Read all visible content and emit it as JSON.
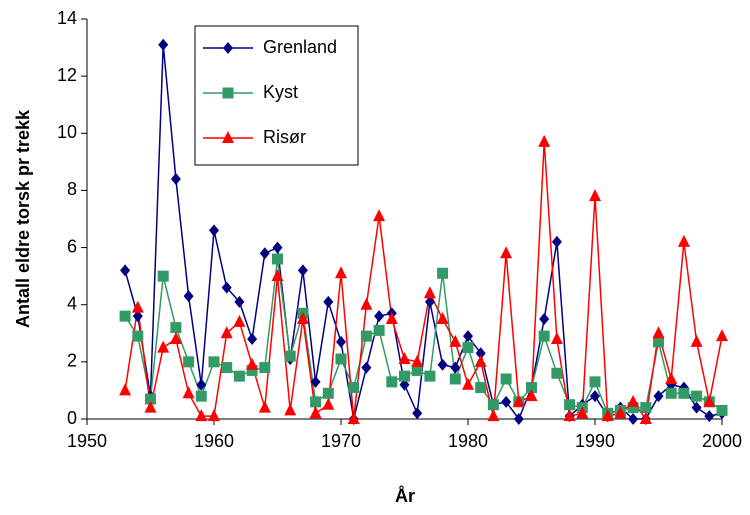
{
  "chart_data": {
    "type": "line",
    "x_label": "År",
    "y_label": "Antall eldre torsk pr trekk",
    "x": [
      1953,
      1954,
      1955,
      1956,
      1957,
      1958,
      1959,
      1960,
      1961,
      1962,
      1963,
      1964,
      1965,
      1966,
      1967,
      1968,
      1969,
      1970,
      1971,
      1972,
      1973,
      1974,
      1975,
      1976,
      1977,
      1978,
      1979,
      1980,
      1981,
      1982,
      1983,
      1984,
      1985,
      1986,
      1987,
      1988,
      1989,
      1990,
      1991,
      1992,
      1993,
      1994,
      1995,
      1996,
      1997,
      1998,
      1999,
      2000
    ],
    "series": [
      {
        "name": "Grenland",
        "color": "#000080",
        "marker": "diamond",
        "values": [
          5.2,
          3.6,
          0.8,
          13.1,
          8.4,
          4.3,
          1.2,
          6.6,
          4.6,
          4.1,
          2.8,
          5.8,
          6.0,
          2.1,
          5.2,
          1.3,
          4.1,
          2.7,
          0.0,
          1.8,
          3.6,
          3.7,
          1.2,
          0.2,
          4.1,
          1.9,
          1.8,
          2.9,
          2.3,
          0.5,
          0.6,
          0.0,
          1.1,
          3.5,
          6.2,
          0.1,
          0.5,
          0.8,
          0.1,
          0.4,
          0.0,
          0.0,
          0.8,
          1.2,
          1.1,
          0.4,
          0.1,
          0.2
        ]
      },
      {
        "name": "Kyst",
        "color": "#339966",
        "marker": "square",
        "values": [
          3.6,
          2.9,
          0.7,
          5.0,
          3.2,
          2.0,
          0.8,
          2.0,
          1.8,
          1.5,
          1.7,
          1.8,
          5.6,
          2.2,
          3.7,
          0.6,
          0.9,
          2.1,
          1.1,
          2.9,
          3.1,
          1.3,
          1.5,
          1.7,
          1.5,
          5.1,
          1.4,
          2.5,
          1.1,
          0.5,
          1.4,
          0.6,
          1.1,
          2.9,
          1.6,
          0.5,
          0.4,
          1.3,
          0.2,
          0.3,
          0.4,
          0.4,
          2.7,
          0.9,
          0.9,
          0.8,
          0.6,
          0.3
        ]
      },
      {
        "name": "Risør",
        "color": "#ff0000",
        "marker": "triangle",
        "values": [
          1.0,
          3.9,
          0.4,
          2.5,
          2.8,
          0.9,
          0.1,
          0.1,
          3.0,
          3.4,
          1.9,
          0.4,
          5.0,
          0.3,
          3.5,
          0.2,
          0.5,
          5.1,
          0.0,
          4.0,
          7.1,
          3.5,
          2.1,
          2.0,
          4.4,
          3.5,
          2.7,
          1.2,
          2.0,
          0.1,
          5.8,
          0.6,
          0.8,
          9.7,
          2.8,
          0.1,
          0.2,
          7.8,
          0.1,
          0.2,
          0.6,
          0.0,
          3.0,
          1.4,
          6.2,
          2.7,
          0.6,
          2.9
        ]
      }
    ],
    "xlim": [
      1950,
      2000
    ],
    "xticks": [
      1950,
      1960,
      1970,
      1980,
      1990,
      2000
    ],
    "ylim": [
      0,
      14
    ],
    "yticks": [
      0,
      2,
      4,
      6,
      8,
      10,
      12,
      14
    ],
    "grid": false,
    "legend": "upper left"
  }
}
